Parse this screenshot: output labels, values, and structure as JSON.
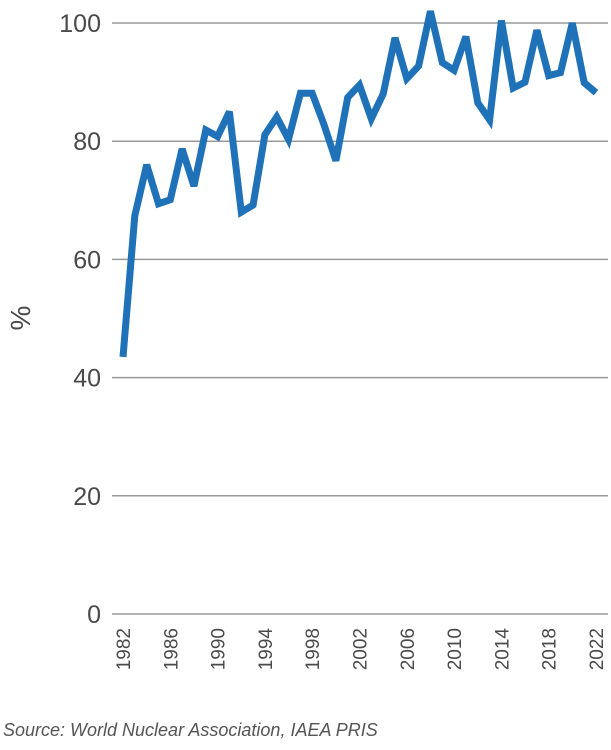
{
  "chart_data": {
    "type": "line",
    "title": "",
    "xlabel": "",
    "ylabel": "%",
    "xlim": [
      1982,
      2022
    ],
    "ylim": [
      0,
      100
    ],
    "y_ticks": [
      "0",
      "20",
      "40",
      "60",
      "80",
      "100"
    ],
    "x_ticks": [
      "1982",
      "1986",
      "1990",
      "1994",
      "1998",
      "2002",
      "2006",
      "2010",
      "2014",
      "2018",
      "2022"
    ],
    "grid": "horizontal",
    "legend": "none",
    "color": "#1f72b8",
    "series": [
      {
        "x": [
          1982,
          1983,
          1984,
          1985,
          1986,
          1987,
          1988,
          1989,
          1990,
          1991,
          1992,
          1993,
          1994,
          1995,
          1996,
          1997,
          1998,
          1999,
          2000,
          2001,
          2002,
          2003,
          2004,
          2005,
          2006,
          2007,
          2008,
          2009,
          2010,
          2011,
          2012,
          2013,
          2014,
          2015,
          2016,
          2017,
          2018,
          2019,
          2020,
          2021,
          2022
        ],
        "values": [
          43.5,
          67.4,
          76.0,
          69.4,
          70.1,
          78.7,
          72.4,
          81.9,
          80.8,
          85.0,
          68.0,
          69.2,
          81.1,
          84.1,
          80.3,
          88.1,
          88.1,
          82.8,
          76.7,
          87.4,
          89.5,
          83.8,
          88.0,
          97.5,
          90.6,
          92.7,
          102.0,
          93.3,
          92.0,
          97.7,
          86.5,
          83.6,
          100.4,
          89.0,
          90.0,
          98.8,
          91.1,
          91.6,
          100.0,
          89.9,
          88.2
        ]
      }
    ]
  },
  "source": "Source: World Nuclear Association, IAEA PRIS"
}
